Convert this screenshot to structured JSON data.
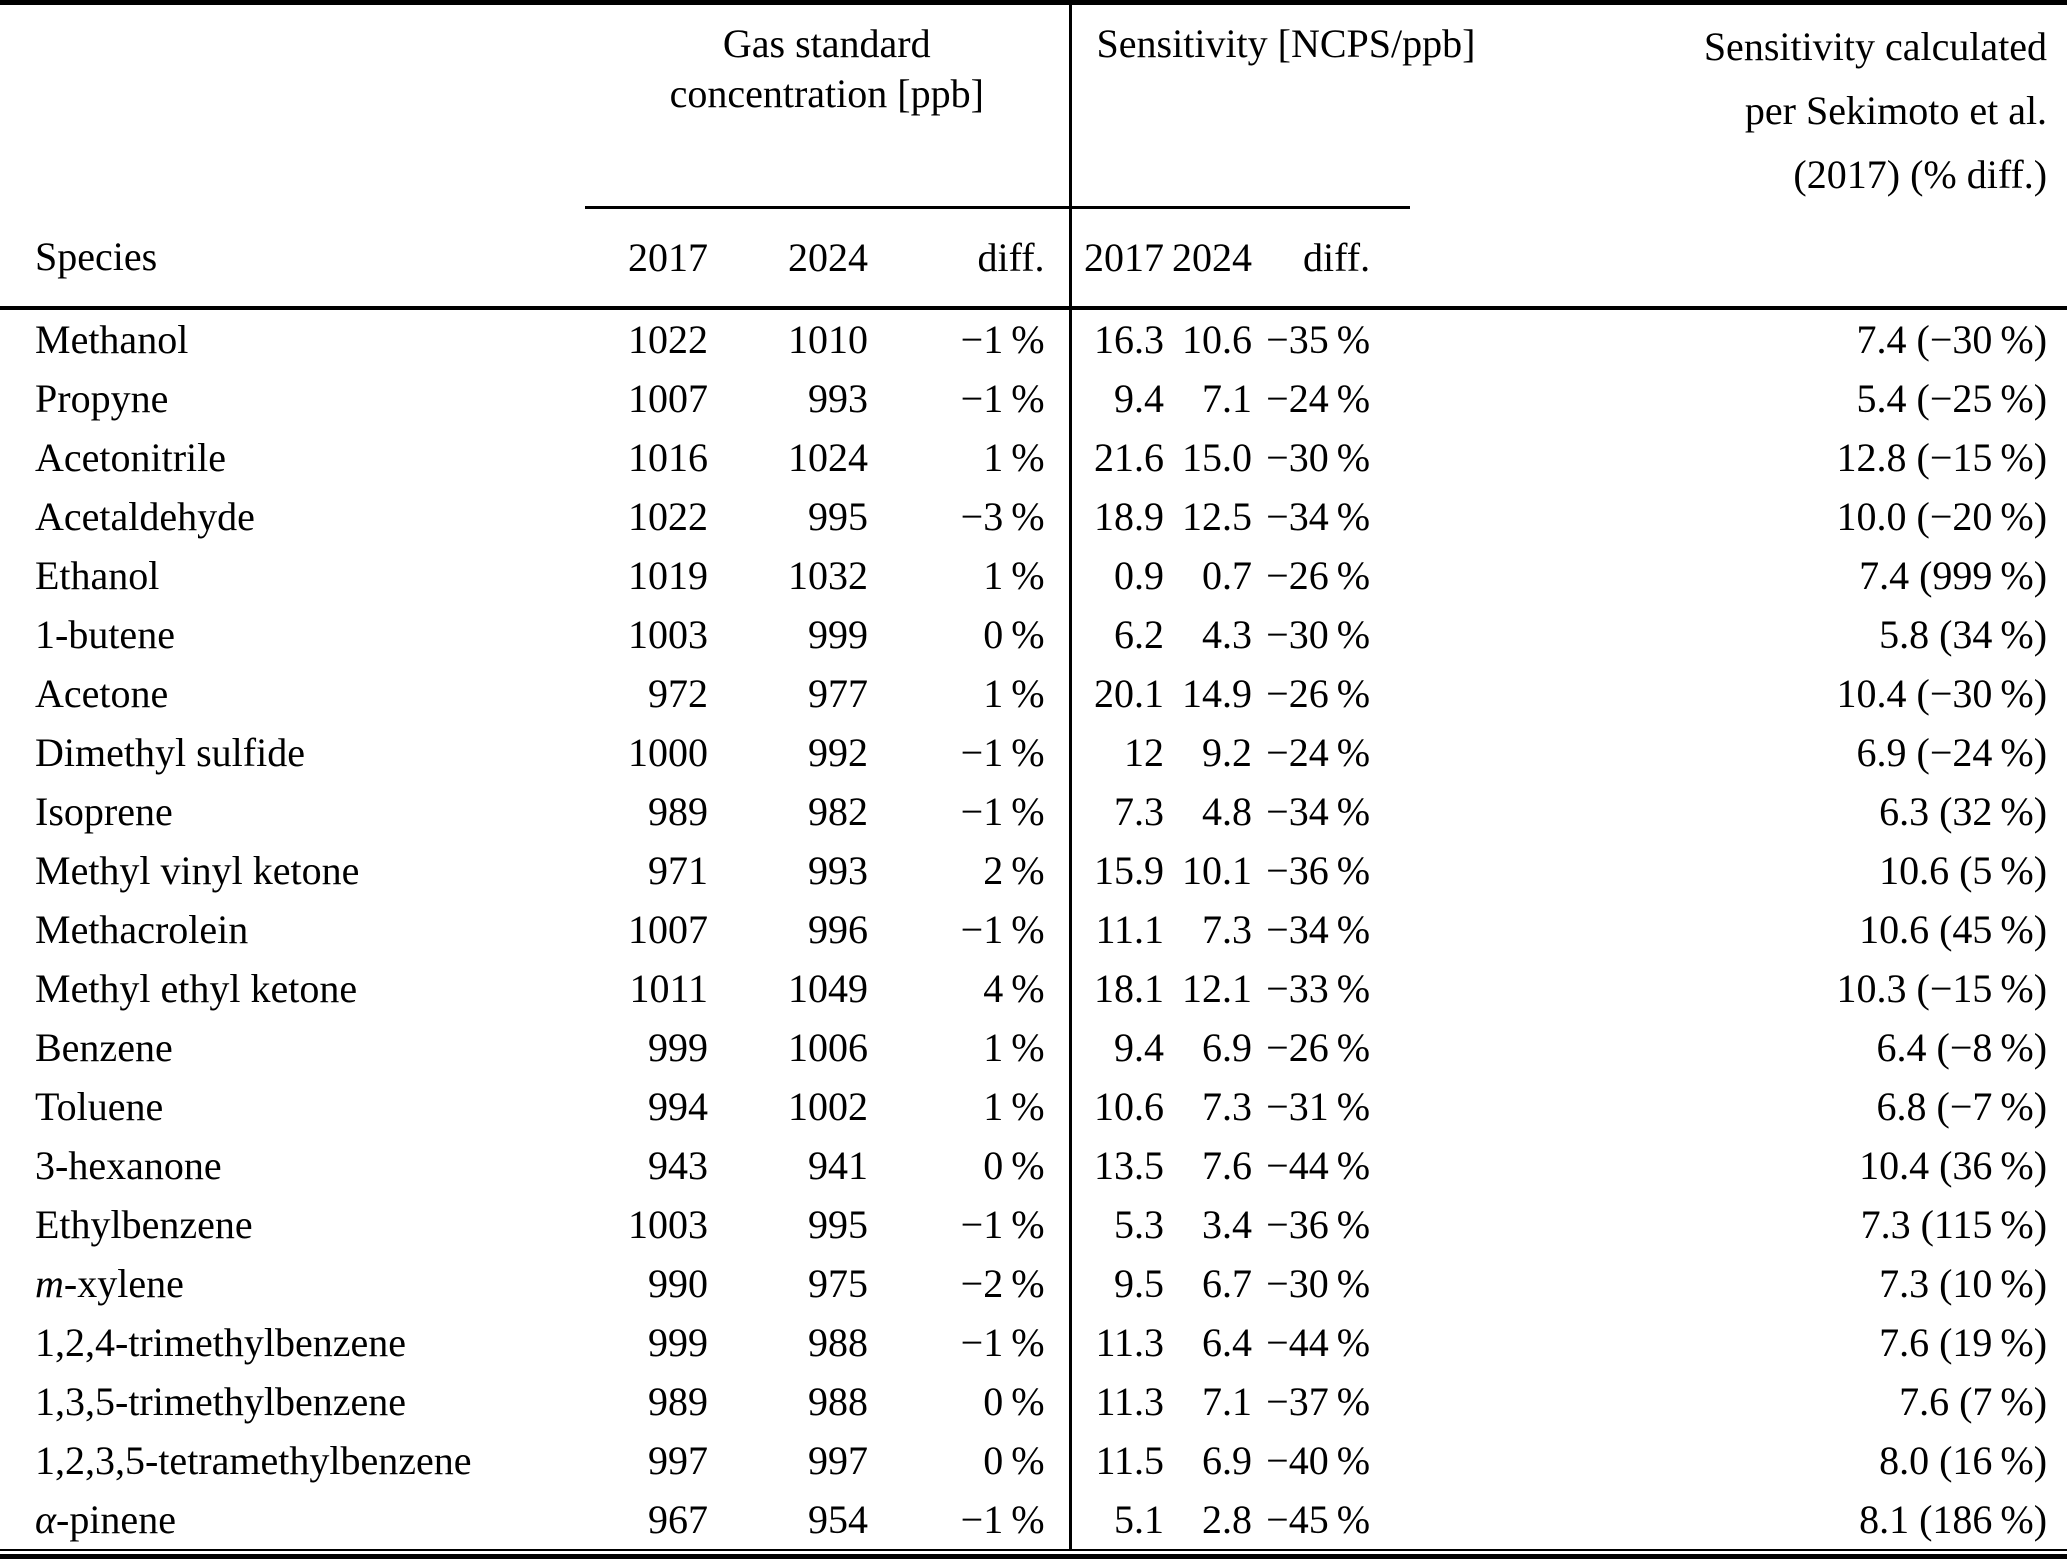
{
  "table": {
    "groups": {
      "gas": {
        "line1": "Gas standard",
        "line2": "concentration [ppb]"
      },
      "sensitivity": {
        "title": "Sensitivity [NCPS/ppb]"
      },
      "sekimoto": {
        "line1": "Sensitivity calculated",
        "line2": "per Sekimoto et al.",
        "line3": "(2017) (% diff.)"
      }
    },
    "subheader": {
      "species": "Species",
      "gas_2017": "2017",
      "gas_2024": "2024",
      "gas_diff": "diff.",
      "sens_2017": "2017",
      "sens_2024": "2024",
      "sens_diff": "diff."
    },
    "rows": [
      {
        "species": [
          [
            "Methanol",
            false
          ]
        ],
        "gas": [
          "1022",
          "1010",
          "−1 %"
        ],
        "sens": [
          "16.3",
          "10.6",
          "−35 %"
        ],
        "sek": "7.4 (−30 %)"
      },
      {
        "species": [
          [
            "Propyne",
            false
          ]
        ],
        "gas": [
          "1007",
          "993",
          "−1 %"
        ],
        "sens": [
          "9.4",
          "7.1",
          "−24 %"
        ],
        "sek": "5.4 (−25 %)"
      },
      {
        "species": [
          [
            "Acetonitrile",
            false
          ]
        ],
        "gas": [
          "1016",
          "1024",
          "1 %"
        ],
        "sens": [
          "21.6",
          "15.0",
          "−30 %"
        ],
        "sek": "12.8 (−15 %)"
      },
      {
        "species": [
          [
            "Acetaldehyde",
            false
          ]
        ],
        "gas": [
          "1022",
          "995",
          "−3 %"
        ],
        "sens": [
          "18.9",
          "12.5",
          "−34 %"
        ],
        "sek": "10.0 (−20 %)"
      },
      {
        "species": [
          [
            "Ethanol",
            false
          ]
        ],
        "gas": [
          "1019",
          "1032",
          "1 %"
        ],
        "sens": [
          "0.9",
          "0.7",
          "−26 %"
        ],
        "sek": "7.4 (999 %)"
      },
      {
        "species": [
          [
            "1-butene",
            false
          ]
        ],
        "gas": [
          "1003",
          "999",
          "0 %"
        ],
        "sens": [
          "6.2",
          "4.3",
          "−30 %"
        ],
        "sek": "5.8 (34 %)"
      },
      {
        "species": [
          [
            "Acetone",
            false
          ]
        ],
        "gas": [
          "972",
          "977",
          "1 %"
        ],
        "sens": [
          "20.1",
          "14.9",
          "−26 %"
        ],
        "sek": "10.4 (−30 %)"
      },
      {
        "species": [
          [
            "Dimethyl sulfide",
            false
          ]
        ],
        "gas": [
          "1000",
          "992",
          "−1 %"
        ],
        "sens": [
          "12",
          "9.2",
          "−24 %"
        ],
        "sek": "6.9 (−24 %)"
      },
      {
        "species": [
          [
            "Isoprene",
            false
          ]
        ],
        "gas": [
          "989",
          "982",
          "−1 %"
        ],
        "sens": [
          "7.3",
          "4.8",
          "−34 %"
        ],
        "sek": "6.3 (32 %)"
      },
      {
        "species": [
          [
            "Methyl vinyl ketone",
            false
          ]
        ],
        "gas": [
          "971",
          "993",
          "2 %"
        ],
        "sens": [
          "15.9",
          "10.1",
          "−36 %"
        ],
        "sek": "10.6 (5 %)"
      },
      {
        "species": [
          [
            "Methacrolein",
            false
          ]
        ],
        "gas": [
          "1007",
          "996",
          "−1 %"
        ],
        "sens": [
          "11.1",
          "7.3",
          "−34 %"
        ],
        "sek": "10.6 (45 %)"
      },
      {
        "species": [
          [
            "Methyl ethyl ketone",
            false
          ]
        ],
        "gas": [
          "1011",
          "1049",
          "4 %"
        ],
        "sens": [
          "18.1",
          "12.1",
          "−33 %"
        ],
        "sek": "10.3 (−15 %)"
      },
      {
        "species": [
          [
            "Benzene",
            false
          ]
        ],
        "gas": [
          "999",
          "1006",
          "1 %"
        ],
        "sens": [
          "9.4",
          "6.9",
          "−26 %"
        ],
        "sek": "6.4 (−8 %)"
      },
      {
        "species": [
          [
            "Toluene",
            false
          ]
        ],
        "gas": [
          "994",
          "1002",
          "1 %"
        ],
        "sens": [
          "10.6",
          "7.3",
          "−31 %"
        ],
        "sek": "6.8 (−7 %)"
      },
      {
        "species": [
          [
            "3-hexanone",
            false
          ]
        ],
        "gas": [
          "943",
          "941",
          "0 %"
        ],
        "sens": [
          "13.5",
          "7.6",
          "−44 %"
        ],
        "sek": "10.4 (36 %)"
      },
      {
        "species": [
          [
            "Ethylbenzene",
            false
          ]
        ],
        "gas": [
          "1003",
          "995",
          "−1 %"
        ],
        "sens": [
          "5.3",
          "3.4",
          "−36 %"
        ],
        "sek": "7.3 (115 %)"
      },
      {
        "species": [
          [
            "m",
            true
          ],
          [
            "-xylene",
            false
          ]
        ],
        "gas": [
          "990",
          "975",
          "−2 %"
        ],
        "sens": [
          "9.5",
          "6.7",
          "−30 %"
        ],
        "sek": "7.3 (10 %)"
      },
      {
        "species": [
          [
            "1,2,4-trimethylbenzene",
            false
          ]
        ],
        "gas": [
          "999",
          "988",
          "−1 %"
        ],
        "sens": [
          "11.3",
          "6.4",
          "−44 %"
        ],
        "sek": "7.6 (19 %)"
      },
      {
        "species": [
          [
            "1,3,5-trimethylbenzene",
            false
          ]
        ],
        "gas": [
          "989",
          "988",
          "0 %"
        ],
        "sens": [
          "11.3",
          "7.1",
          "−37 %"
        ],
        "sek": "7.6 (7 %)"
      },
      {
        "species": [
          [
            "1,2,3,5-tetramethylbenzene",
            false
          ]
        ],
        "gas": [
          "997",
          "997",
          "0 %"
        ],
        "sens": [
          "11.5",
          "6.9",
          "−40 %"
        ],
        "sek": "8.0 (16 %)"
      },
      {
        "species": [
          [
            "α",
            true
          ],
          [
            "-pinene",
            false
          ]
        ],
        "gas": [
          "967",
          "954",
          "−1 %"
        ],
        "sens": [
          "5.1",
          "2.8",
          "−45 %"
        ],
        "sek": "8.1 (186 %)"
      }
    ]
  }
}
